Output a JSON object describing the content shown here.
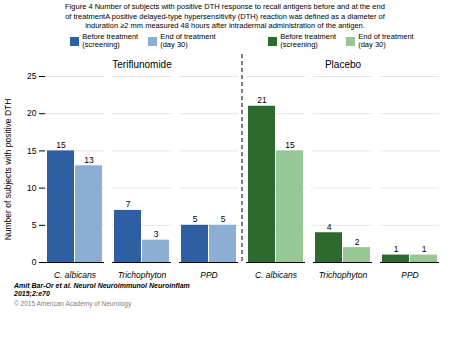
{
  "chart_data": {
    "type": "bar",
    "title": "Figure 4 Number of subjects with positive DTH response to recall antigens before and at the end\nof treatmentA positive delayed-type hypersensitivity (DTH) reaction was defined as a diameter of\ninduration ≥2 mm measured 48 hours after intradermal administration of the antigen.",
    "ylabel": "Number of subjects with positive DTH",
    "categories": [
      "C. albicans",
      "Trichophyton",
      "PPD"
    ],
    "groups": [
      "Teriflunomide",
      "Placebo"
    ],
    "series": [
      {
        "name": "Before treatment\n(screening)",
        "group": "Teriflunomide",
        "color": "#2E5FA3",
        "values": [
          15,
          7,
          5
        ]
      },
      {
        "name": "End of treatment\n(day 30)",
        "group": "Teriflunomide",
        "color": "#8BAFD4",
        "values": [
          13,
          3,
          5
        ]
      },
      {
        "name": "Before treatment\n(screening)",
        "group": "Placebo",
        "color": "#2D6A2D",
        "values": [
          21,
          4,
          1
        ]
      },
      {
        "name": "End of treatment\n(day 30)",
        "group": "Placebo",
        "color": "#96C896",
        "values": [
          15,
          2,
          1
        ]
      }
    ],
    "ylim": [
      0,
      25
    ],
    "yticks": [
      0,
      5,
      10,
      15,
      20,
      25
    ],
    "grid": true,
    "data_labels": true,
    "legend": "top",
    "annotations": [
      "Amit Bar-Or et al. Neurol Neuroimmunol Neuroinflam\n2015;2:e70",
      "© 2015 American Academy of Neurology"
    ]
  }
}
